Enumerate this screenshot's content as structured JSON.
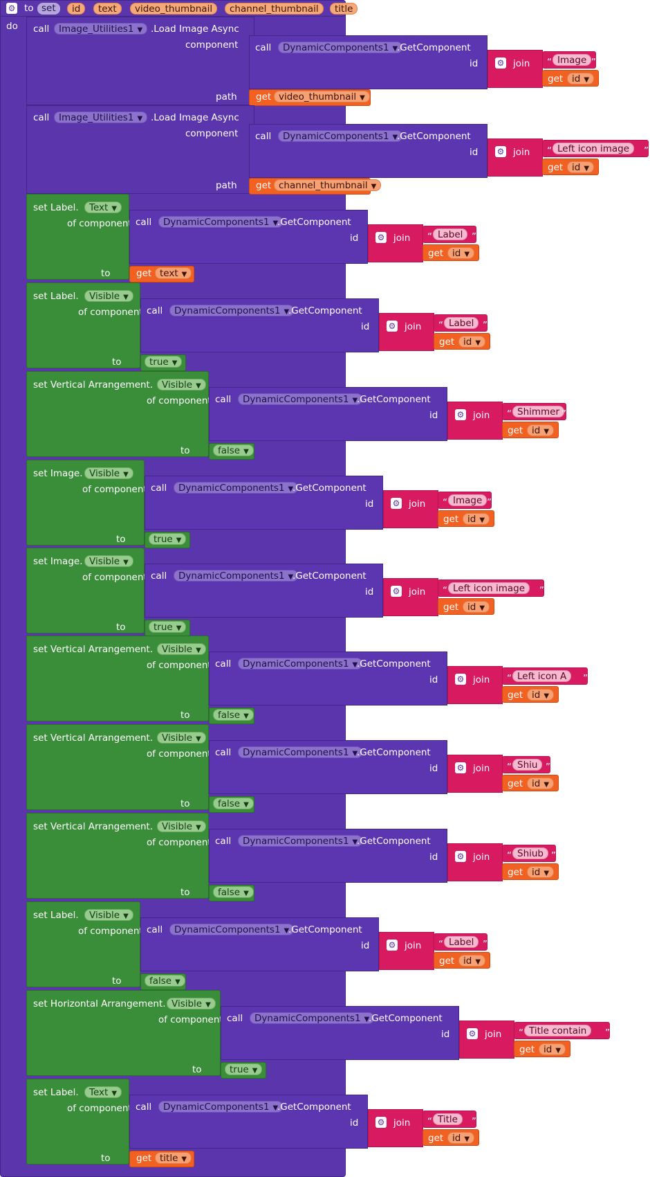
{
  "procedure": {
    "to_label": "to",
    "name": "set",
    "params": [
      "id",
      "text",
      "video_thumbnail",
      "channel_thumbnail",
      "title"
    ],
    "do_label": "do"
  },
  "keywords": {
    "call": "call",
    "component": "component",
    "path": "path",
    "of_component": "of component",
    "to": "to",
    "id": "id",
    "join": "join",
    "get": "get",
    "load_method": ".Load Image Async",
    "getcomp_method": ".GetComponent"
  },
  "components": {
    "image_utilities": "Image_Utilities1",
    "dynamic_components": "DynamicComponents1"
  },
  "load_blocks": [
    {
      "string": "Image",
      "path_var": "video_thumbnail"
    },
    {
      "string": "Left icon image",
      "path_var": "channel_thumbnail"
    }
  ],
  "set_blocks": [
    {
      "prefix": "set Label.",
      "property": "Text",
      "string": "Label",
      "to_kind": "get",
      "to_value": "text"
    },
    {
      "prefix": "set Label.",
      "property": "Visible",
      "string": "Label",
      "to_kind": "bool",
      "to_value": "true"
    },
    {
      "prefix": "set Vertical Arrangement.",
      "property": "Visible",
      "string": "Shimmer",
      "to_kind": "bool",
      "to_value": "false"
    },
    {
      "prefix": "set Image.",
      "property": "Visible",
      "string": "Image",
      "to_kind": "bool",
      "to_value": "true"
    },
    {
      "prefix": "set Image.",
      "property": "Visible",
      "string": "Left icon image",
      "to_kind": "bool",
      "to_value": "true"
    },
    {
      "prefix": "set Vertical Arrangement.",
      "property": "Visible",
      "string": "Left icon A",
      "to_kind": "bool",
      "to_value": "false"
    },
    {
      "prefix": "set Vertical Arrangement.",
      "property": "Visible",
      "string": "Shiu",
      "to_kind": "bool",
      "to_value": "false"
    },
    {
      "prefix": "set Vertical Arrangement.",
      "property": "Visible",
      "string": "Shiub",
      "to_kind": "bool",
      "to_value": "false"
    },
    {
      "prefix": "set Label.",
      "property": "Visible",
      "string": "Label",
      "to_kind": "bool",
      "to_value": "false"
    },
    {
      "prefix": "set Horizontal Arrangement.",
      "property": "Visible",
      "string": "Title contain",
      "to_kind": "bool",
      "to_value": "true"
    },
    {
      "prefix": "set Label.",
      "property": "Text",
      "string": "Title",
      "to_kind": "get",
      "to_value": "title"
    }
  ],
  "colors": {
    "procedure": "#5b35ab",
    "setter": "#3a8d39",
    "call": "#5c36b0",
    "text": "#d81b60",
    "variable": "#f26022"
  }
}
